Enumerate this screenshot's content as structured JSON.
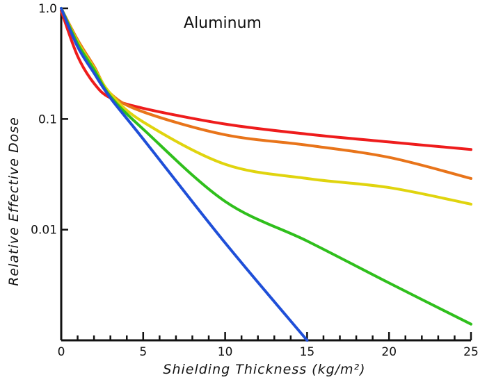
{
  "chart_data": {
    "type": "line",
    "title": "Aluminum",
    "xlabel": "Shielding Thickness (kg/m²)",
    "ylabel": "Relative Effective Dose",
    "xlim": [
      0,
      25
    ],
    "ylim": [
      0.001,
      1
    ],
    "yscale": "log",
    "grid": false,
    "legend": "none",
    "x_ticks": [
      0,
      5,
      10,
      15,
      20,
      25
    ],
    "x_tick_labels": [
      "0",
      "5",
      "10",
      "15",
      "20",
      "25"
    ],
    "y_ticks": [
      1,
      0.1,
      0.01
    ],
    "y_tick_labels": [
      "1.0",
      "0.1",
      "0.01"
    ],
    "series": [
      {
        "name": "red",
        "color": "#ee1c1c",
        "x": [
          0,
          1,
          2,
          3,
          5,
          10,
          15,
          20,
          25
        ],
        "y": [
          0.95,
          0.37,
          0.21,
          0.155,
          0.125,
          0.09,
          0.073,
          0.062,
          0.053
        ]
      },
      {
        "name": "orange",
        "color": "#e8741a",
        "x": [
          0,
          1,
          2,
          3,
          5,
          10,
          15,
          20,
          25
        ],
        "y": [
          1.0,
          0.52,
          0.3,
          0.17,
          0.116,
          0.072,
          0.058,
          0.045,
          0.029
        ]
      },
      {
        "name": "yellow",
        "color": "#e0d40e",
        "x": [
          0,
          1,
          2,
          3,
          5,
          10,
          15,
          20,
          25
        ],
        "y": [
          1.0,
          0.5,
          0.29,
          0.17,
          0.094,
          0.039,
          0.029,
          0.024,
          0.017
        ]
      },
      {
        "name": "green",
        "color": "#2fbf1c",
        "x": [
          0,
          1,
          2,
          3,
          5,
          10,
          15,
          20,
          25
        ],
        "y": [
          1.0,
          0.48,
          0.28,
          0.16,
          0.081,
          0.018,
          0.0079,
          0.0033,
          0.0014
        ]
      },
      {
        "name": "blue",
        "color": "#1f4fd8",
        "x": [
          0,
          1,
          2,
          3,
          5,
          10,
          15
        ],
        "y": [
          1.0,
          0.45,
          0.26,
          0.155,
          0.066,
          0.0076,
          0.001
        ]
      }
    ]
  }
}
